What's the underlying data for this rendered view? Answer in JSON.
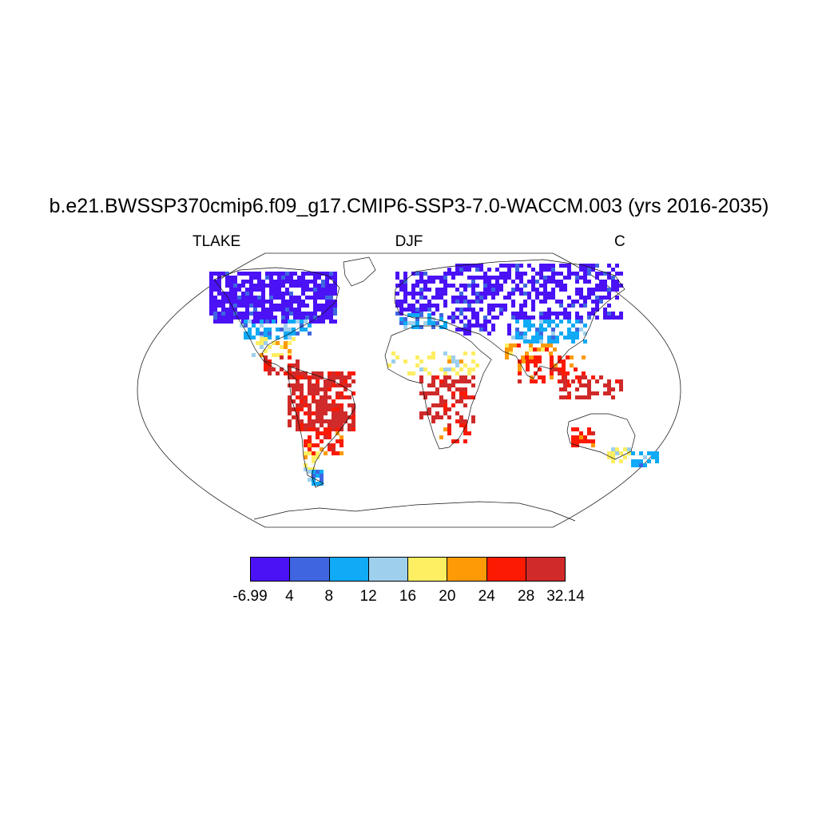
{
  "title": "b.e21.BWSSP370cmip6.f09_g17.CMIP6-SSP3-7.0-WACCM.003 (yrs 2016-2035)",
  "left_string": "TLAKE",
  "center_string": "DJF",
  "right_string": "C",
  "colorbar": {
    "colors": [
      "#4a12f5",
      "#3f66e0",
      "#10aaf6",
      "#9ed0ee",
      "#fdee62",
      "#fd9a06",
      "#fc1a02",
      "#d02a2a"
    ],
    "labels": [
      "-6.99",
      "4",
      "8",
      "12",
      "16",
      "20",
      "24",
      "28",
      "32.14"
    ]
  }
}
